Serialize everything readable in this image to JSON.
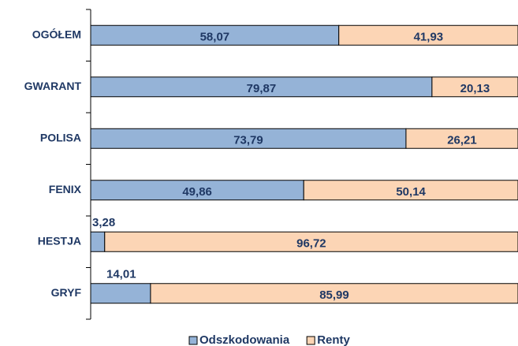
{
  "chart_data": {
    "type": "bar",
    "orientation": "horizontal",
    "stacked": true,
    "categories": [
      "OGÓŁEM",
      "GWARANT",
      "POLISA",
      "FENIX",
      "HESTJA",
      "GRYF"
    ],
    "series": [
      {
        "name": "Odszkodowania",
        "color": "#95b3d7",
        "values": [
          58.07,
          79.87,
          73.79,
          49.86,
          3.28,
          14.01
        ],
        "value_labels": [
          "58,07",
          "79,87",
          "73,79",
          "49,86",
          "3,28",
          "14,01"
        ]
      },
      {
        "name": "Renty",
        "color": "#fcd5b5",
        "values": [
          41.93,
          20.13,
          26.21,
          50.14,
          96.72,
          85.99
        ],
        "value_labels": [
          "41,93",
          "20,13",
          "26,21",
          "50,14",
          "96,72",
          "85,99"
        ]
      }
    ],
    "xlim": [
      0,
      100
    ],
    "legend": "bottom"
  }
}
